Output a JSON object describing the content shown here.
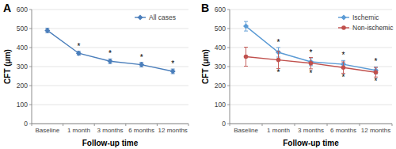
{
  "chart_data": [
    {
      "type": "line",
      "title": "A",
      "x_label": "Follow-up time",
      "y_label": "CFT (μm)",
      "categories": [
        "Baseline",
        "1 month",
        "3 months",
        "6 months",
        "12 months"
      ],
      "series": [
        {
          "name": "All cases",
          "color": "#4a7ebb",
          "marker": "diamond",
          "values": [
            490,
            370,
            328,
            310,
            275
          ],
          "errors": [
            12,
            10,
            12,
            12,
            12
          ],
          "significance": [
            null,
            "*",
            "*",
            "*",
            "*"
          ]
        }
      ],
      "ylim": [
        0,
        600
      ],
      "yticks": [
        0,
        100,
        200,
        300,
        400,
        500,
        600
      ],
      "grid": true,
      "legend": "upper right"
    },
    {
      "type": "line",
      "title": "B",
      "x_label": "Follow-up time",
      "y_label": "CFT (μm)",
      "categories": [
        "Baseline",
        "1 month",
        "3 months",
        "6 months",
        "12 months"
      ],
      "series": [
        {
          "name": "Ischemic",
          "color": "#5b9bd5",
          "marker": "diamond",
          "values": [
            512,
            375,
            325,
            312,
            280
          ],
          "errors": [
            25,
            25,
            20,
            20,
            18
          ],
          "significance": [
            null,
            "*",
            "*",
            "*",
            "*"
          ]
        },
        {
          "name": "Non-ischemic",
          "color": "#c0504d",
          "marker": "circle",
          "values": [
            352,
            335,
            318,
            295,
            270
          ],
          "errors": [
            50,
            45,
            30,
            30,
            25
          ],
          "significance": [
            null,
            "*",
            "*",
            "*",
            "*"
          ]
        }
      ],
      "ylim": [
        0,
        600
      ],
      "yticks": [
        0,
        100,
        200,
        300,
        400,
        500,
        600
      ],
      "grid": true,
      "legend": "upper right"
    }
  ]
}
